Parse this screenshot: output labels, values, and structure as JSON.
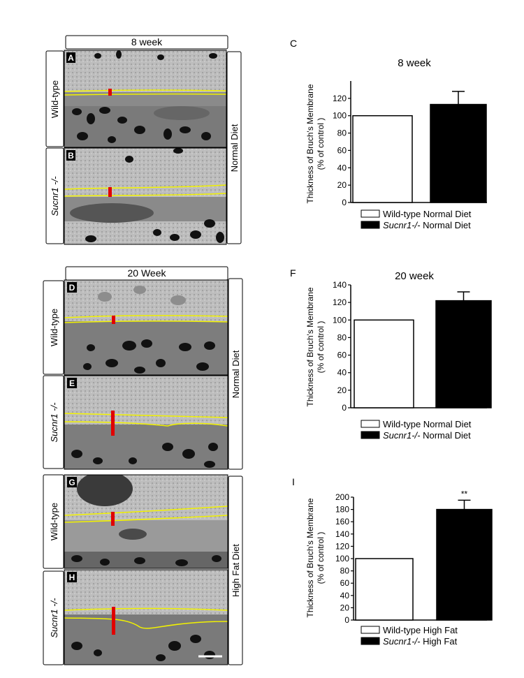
{
  "panels": {
    "top_header": "8 week",
    "bottom_header": "20 Week",
    "row_labels": {
      "wildtype": "Wild-type",
      "sucnr1": "Sucnr1 -/-"
    },
    "diet_labels": {
      "normal": "Normal Diet",
      "high_fat": "High Fat Diet"
    },
    "letters": [
      "A",
      "B",
      "D",
      "E",
      "G",
      "H"
    ]
  },
  "chart_data": [
    {
      "panel_letter": "C",
      "type": "bar",
      "title": "8 week",
      "ylabel": "Thickness of Bruch's Membrane (% of control )",
      "ylabel_lines": [
        "Thickness of Bruch's Membrane",
        "(% of control )"
      ],
      "ylim": [
        0,
        140
      ],
      "yticks": [
        0,
        20,
        40,
        60,
        80,
        100,
        120
      ],
      "categories": [
        "Wild-type Normal Diet",
        "Sucnr1-/- Normal Diet"
      ],
      "values": [
        100,
        113
      ],
      "errors": [
        0,
        15
      ],
      "fills": [
        "#ffffff",
        "#000000"
      ],
      "significance": [
        "",
        ""
      ],
      "legend": [
        {
          "italic": "",
          "text": "Wild-type Normal Diet",
          "fill": "#ffffff"
        },
        {
          "italic": "Sucnr1-/-",
          "text": " Normal Diet",
          "fill": "#000000"
        }
      ]
    },
    {
      "panel_letter": "F",
      "type": "bar",
      "title": "20 week",
      "ylabel": "Thickness of Bruch's Membrane (% of control )",
      "ylabel_lines": [
        "Thickness of Bruch's Membrane",
        "(% of control )"
      ],
      "ylim": [
        0,
        140
      ],
      "yticks": [
        0,
        20,
        40,
        60,
        80,
        100,
        120,
        140
      ],
      "categories": [
        "Wild-type Normal Diet",
        "Sucnr1-/- Normal Diet"
      ],
      "values": [
        100,
        122
      ],
      "errors": [
        0,
        10
      ],
      "fills": [
        "#ffffff",
        "#000000"
      ],
      "significance": [
        "",
        ""
      ],
      "legend": [
        {
          "italic": "",
          "text": "Wild-type Normal Diet",
          "fill": "#ffffff"
        },
        {
          "italic": "Sucnr1-/-",
          "text": " Normal Diet",
          "fill": "#000000"
        }
      ]
    },
    {
      "panel_letter": "I",
      "type": "bar",
      "title": "",
      "ylabel": "Thickness of Bruch's Membrane (% of control )",
      "ylabel_lines": [
        "Thickness of Bruch's Membrane",
        "(% of control )"
      ],
      "ylim": [
        0,
        200
      ],
      "yticks": [
        0,
        20,
        40,
        60,
        80,
        100,
        120,
        140,
        160,
        180,
        200
      ],
      "categories": [
        "Wild-type High Fat",
        "Sucnr1-/- High Fat"
      ],
      "values": [
        100,
        180
      ],
      "errors": [
        0,
        15
      ],
      "fills": [
        "#ffffff",
        "#000000"
      ],
      "significance": [
        "",
        "**"
      ],
      "legend": [
        {
          "italic": "",
          "text": "Wild-type High Fat",
          "fill": "#ffffff"
        },
        {
          "italic": "Sucnr1-/-",
          "text": " High Fat",
          "fill": "#000000"
        }
      ]
    }
  ]
}
